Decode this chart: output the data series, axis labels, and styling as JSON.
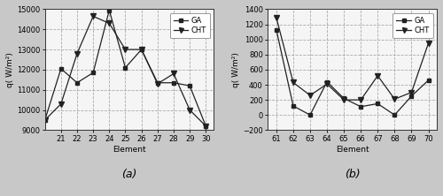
{
  "a_x": [
    20,
    21,
    22,
    23,
    24,
    25,
    26,
    27,
    28,
    29,
    30
  ],
  "a_GA": [
    9500,
    12050,
    11350,
    11850,
    14950,
    12100,
    13000,
    11350,
    11350,
    11200,
    9200
  ],
  "a_CHT": [
    9500,
    10300,
    12800,
    14650,
    14300,
    13000,
    13000,
    11300,
    11800,
    10000,
    9200
  ],
  "b_x": [
    61,
    62,
    63,
    64,
    65,
    66,
    67,
    68,
    69,
    70
  ],
  "b_GA": [
    1130,
    120,
    0,
    440,
    220,
    110,
    150,
    0,
    250,
    460
  ],
  "b_CHT": [
    1290,
    430,
    260,
    410,
    200,
    200,
    520,
    210,
    300,
    950
  ],
  "a_xlabel": "Element",
  "b_xlabel": "Element",
  "a_ylabel": "q( W/m²)",
  "b_ylabel": "q( W/m²)",
  "a_label": "(a)",
  "b_label": "(b)",
  "a_ylim": [
    9000,
    15000
  ],
  "b_ylim": [
    -200,
    1400
  ],
  "a_yticks": [
    9000,
    10000,
    11000,
    12000,
    13000,
    14000,
    15000
  ],
  "b_yticks": [
    -200,
    0,
    200,
    400,
    600,
    800,
    1000,
    1200,
    1400
  ],
  "a_xticks": [
    21,
    22,
    23,
    24,
    25,
    26,
    27,
    28,
    29,
    30
  ],
  "b_xticks": [
    61,
    62,
    63,
    64,
    65,
    66,
    67,
    68,
    69,
    70
  ],
  "a_xlim": [
    20.0,
    30.5
  ],
  "b_xlim": [
    60.5,
    70.5
  ],
  "line_color": "#222222",
  "marker_GA": "s",
  "marker_CHT": "v",
  "legend_labels": [
    "GA",
    "CHT"
  ],
  "plot_bg_color": "#f5f5f5",
  "fig_bg_color": "#c8c8c8",
  "grid_color": "#aaaaaa",
  "marker_size": 3.5,
  "line_width": 0.9,
  "tick_fontsize": 6.0,
  "label_fontsize": 6.5,
  "legend_fontsize": 6.0,
  "subplot_label_fontsize": 9.0
}
